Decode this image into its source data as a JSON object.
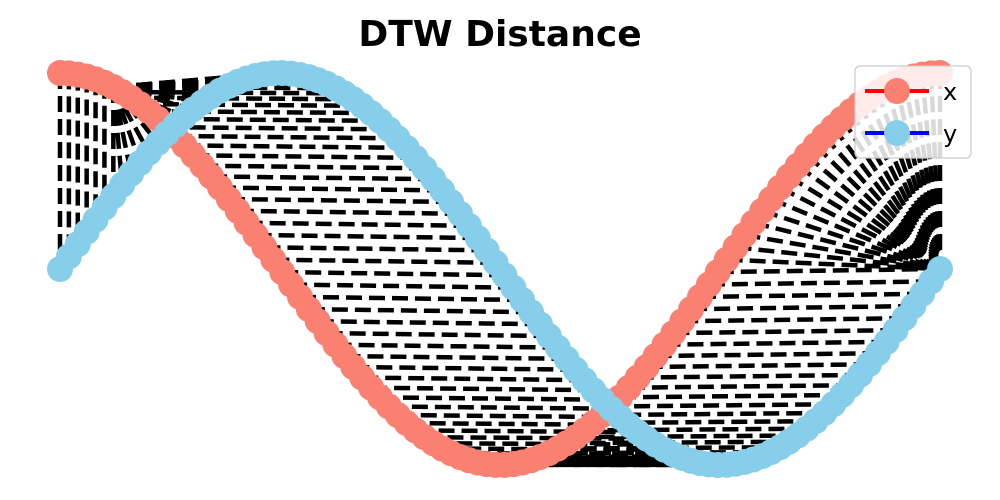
{
  "chart_data": {
    "type": "line",
    "title": "DTW Distance",
    "xlabel": "",
    "ylabel": "",
    "axes_visible": false,
    "grid": false,
    "legend_position": "top-right",
    "samples": 100,
    "x_range": [
      0,
      6.2832
    ],
    "ylim": [
      -1,
      1
    ],
    "series": [
      {
        "name": "x",
        "function": "cos(t)",
        "marker_color": "#fa8072",
        "legend_line_color": "#ff0000"
      },
      {
        "name": "y",
        "function": "sin(t)",
        "marker_color": "#87ceeb",
        "legend_line_color": "#0000ff"
      }
    ],
    "alignment_lines": {
      "style": "dashed",
      "color": "#000000",
      "description": "DTW warping path connecting matched points of x and y"
    }
  }
}
